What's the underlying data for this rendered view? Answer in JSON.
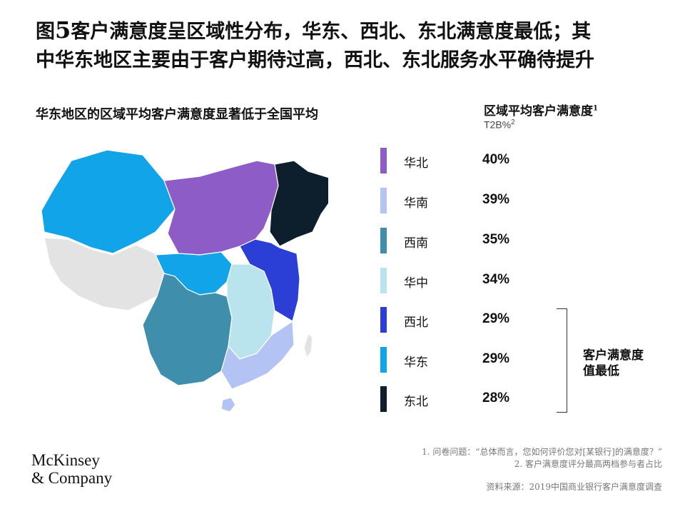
{
  "title": {
    "prefix": "图",
    "number": "5",
    "line1_rest": "客户满意度呈区域性分布，华东、西北、东北满意度最低；其",
    "line2": "中华东地区主要由于客户期待过高，西北、东北服务水平确待提升"
  },
  "subtitle": "华东地区的区域平均客户满意度显著低于全国平均",
  "legend": {
    "heading": "区域平均客户满意度",
    "heading_sup": "1",
    "sub": "T2B%",
    "sub_sup": "2",
    "rows": [
      {
        "region": "华北",
        "value": "40%",
        "color": "#8e5cc6"
      },
      {
        "region": "华南",
        "value": "39%",
        "color": "#b3c3f3"
      },
      {
        "region": "西南",
        "value": "35%",
        "color": "#3f8fac"
      },
      {
        "region": "华中",
        "value": "34%",
        "color": "#b9e4ee"
      },
      {
        "region": "西北",
        "value": "29%",
        "color": "#2b3fd6"
      },
      {
        "region": "华东",
        "value": "29%",
        "color": "#12a4e8"
      },
      {
        "region": "东北",
        "value": "28%",
        "color": "#0d1f2d"
      }
    ],
    "other_color": "#e3e3e3"
  },
  "bracket_label_line1": "客户满意度",
  "bracket_label_line2": "值最低",
  "notes": {
    "note1": "1. 问卷问题：“总体而言，您如何评价您对[某银行]的满意度？”",
    "note2": "2. 客户满意度评分最高两档参与者占比",
    "source": "资料来源：2019中国商业银行客户满意度调查"
  },
  "logo": {
    "line1": "McKinsey",
    "line2": "& Company"
  }
}
